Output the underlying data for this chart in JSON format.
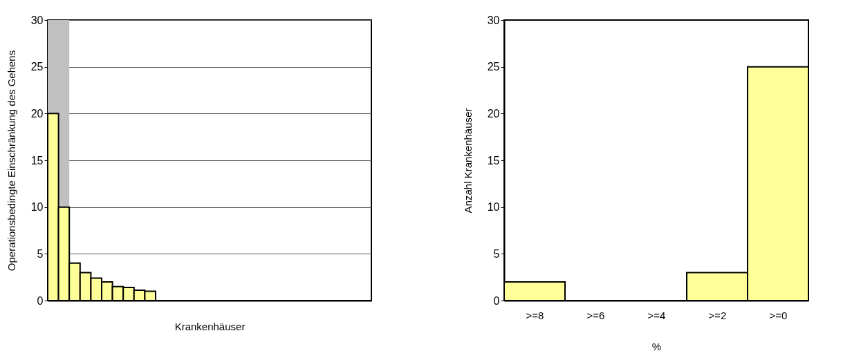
{
  "chart_data": [
    {
      "type": "bar",
      "xlabel": "Krankenhäuser",
      "ylabel": "Operationsbedingte Einschränkung des Gehens",
      "categories": [
        null,
        null,
        null,
        null,
        null,
        null,
        null,
        null,
        null,
        null,
        null,
        null,
        null,
        null,
        null,
        null,
        null,
        null,
        null,
        null,
        null,
        null,
        null,
        null,
        null,
        null,
        null,
        null,
        null,
        null
      ],
      "series": [
        {
          "color": "#ffff99",
          "values": [
            20,
            10,
            4,
            3,
            2.4,
            2,
            1.5,
            1.4,
            1.1,
            1.0,
            0,
            0,
            0,
            0,
            0,
            0,
            0,
            0,
            0,
            0,
            0,
            0,
            0,
            0,
            0,
            0,
            0,
            0,
            0,
            0
          ]
        }
      ],
      "ylim": [
        0,
        30
      ],
      "yticks": [
        0,
        5,
        10,
        15,
        20,
        25,
        30
      ],
      "grid": "y",
      "tick_labels": "y"
    },
    {
      "type": "bar",
      "xlabel": "%",
      "ylabel": "Anzahl Krankenhäuser",
      "categories": [
        ">=8",
        ">=6",
        ">=4",
        ">=2",
        ">=0"
      ],
      "series": [
        {
          "color": "#ffff99",
          "values": [
            2,
            0,
            0,
            3,
            25
          ]
        }
      ],
      "ylim": [
        0,
        30
      ],
      "yticks": [
        0,
        5,
        10,
        15,
        20,
        25,
        30
      ],
      "grid": false
    }
  ]
}
